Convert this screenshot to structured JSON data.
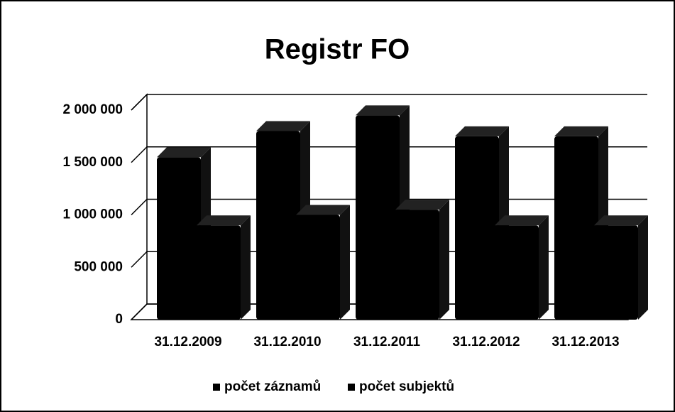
{
  "chart_data": {
    "type": "bar",
    "title": "Registr FO",
    "categories": [
      "31.12.2009",
      "31.12.2010",
      "31.12.2011",
      "31.12.2012",
      "31.12.2013"
    ],
    "series": [
      {
        "name": "počet záznamů",
        "color": "#000000",
        "values": [
          1550000,
          1800000,
          1950000,
          1750000,
          1750000
        ]
      },
      {
        "name": "počet subjektů",
        "color": "#000000",
        "values": [
          900000,
          1000000,
          1050000,
          900000,
          900000
        ]
      }
    ],
    "ylim": [
      0,
      2000000
    ],
    "yticks": [
      0,
      {
        "value": 500000,
        "label": "500 000"
      },
      {
        "value": 1000000,
        "label": "1 000 000"
      },
      {
        "value": 1500000,
        "label": "1 500 000"
      },
      {
        "value": 2000000,
        "label": "2 000 000"
      }
    ],
    "grid": true,
    "legend": "bottom"
  }
}
